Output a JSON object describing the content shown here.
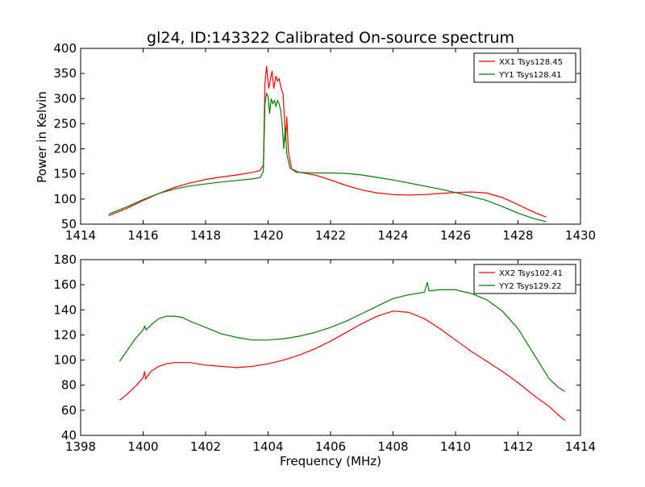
{
  "figure": {
    "title": "gl24, ID:143322 Calibrated On-source spectrum",
    "ylabel": "Power in Kelvin",
    "xlabel": "Frequency (MHz)"
  },
  "chart_data": [
    {
      "type": "line",
      "xlim": [
        1414,
        1430
      ],
      "ylim": [
        50,
        400
      ],
      "xticks": [
        1414,
        1416,
        1418,
        1420,
        1422,
        1424,
        1426,
        1428,
        1430
      ],
      "yticks": [
        50,
        100,
        150,
        200,
        250,
        300,
        350,
        400
      ],
      "legend_position": "top-right",
      "series": [
        {
          "name": "XX1 Tsys128.45",
          "color": "#ff0000",
          "points": [
            [
              1414.9,
              67
            ],
            [
              1415.5,
              82
            ],
            [
              1416,
              97
            ],
            [
              1416.5,
              111
            ],
            [
              1417,
              123
            ],
            [
              1417.5,
              132
            ],
            [
              1418,
              139
            ],
            [
              1418.5,
              144
            ],
            [
              1419,
              148
            ],
            [
              1419.5,
              153
            ],
            [
              1419.75,
              157
            ],
            [
              1419.85,
              168
            ],
            [
              1419.9,
              330
            ],
            [
              1419.95,
              365
            ],
            [
              1420.02,
              320
            ],
            [
              1420.08,
              340
            ],
            [
              1420.13,
              355
            ],
            [
              1420.18,
              320
            ],
            [
              1420.25,
              345
            ],
            [
              1420.3,
              335
            ],
            [
              1420.35,
              340
            ],
            [
              1420.42,
              320
            ],
            [
              1420.48,
              310
            ],
            [
              1420.52,
              265
            ],
            [
              1420.56,
              215
            ],
            [
              1420.6,
              264
            ],
            [
              1420.65,
              195
            ],
            [
              1420.75,
              160
            ],
            [
              1421,
              153
            ],
            [
              1421.5,
              148
            ],
            [
              1422,
              138
            ],
            [
              1422.5,
              127
            ],
            [
              1423,
              118
            ],
            [
              1423.5,
              112
            ],
            [
              1424,
              109
            ],
            [
              1424.5,
              108
            ],
            [
              1425,
              109
            ],
            [
              1425.5,
              111
            ],
            [
              1426,
              113
            ],
            [
              1426.5,
              114
            ],
            [
              1427,
              112
            ],
            [
              1427.5,
              103
            ],
            [
              1428,
              89
            ],
            [
              1428.5,
              74
            ],
            [
              1428.9,
              64
            ]
          ]
        },
        {
          "name": "YY1 Tsys128.41",
          "color": "#008000",
          "points": [
            [
              1414.9,
              70
            ],
            [
              1415.5,
              85
            ],
            [
              1416,
              99
            ],
            [
              1416.5,
              111
            ],
            [
              1417,
              120
            ],
            [
              1417.5,
              126
            ],
            [
              1418,
              130
            ],
            [
              1418.5,
              134
            ],
            [
              1419,
              137
            ],
            [
              1419.5,
              140
            ],
            [
              1419.75,
              143
            ],
            [
              1419.85,
              155
            ],
            [
              1419.9,
              290
            ],
            [
              1419.95,
              310
            ],
            [
              1420,
              305
            ],
            [
              1420.05,
              270
            ],
            [
              1420.1,
              300
            ],
            [
              1420.15,
              290
            ],
            [
              1420.2,
              296
            ],
            [
              1420.25,
              285
            ],
            [
              1420.3,
              296
            ],
            [
              1420.35,
              290
            ],
            [
              1420.4,
              278
            ],
            [
              1420.45,
              250
            ],
            [
              1420.5,
              200
            ],
            [
              1420.55,
              242
            ],
            [
              1420.6,
              190
            ],
            [
              1420.7,
              162
            ],
            [
              1420.9,
              153
            ],
            [
              1421.5,
              152
            ],
            [
              1422,
              152
            ],
            [
              1422.5,
              151
            ],
            [
              1423,
              148
            ],
            [
              1423.5,
              143
            ],
            [
              1424,
              138
            ],
            [
              1424.5,
              132
            ],
            [
              1425,
              126
            ],
            [
              1425.5,
              120
            ],
            [
              1426,
              113
            ],
            [
              1426.5,
              105
            ],
            [
              1427,
              97
            ],
            [
              1427.5,
              85
            ],
            [
              1428,
              72
            ],
            [
              1428.5,
              61
            ],
            [
              1428.9,
              55
            ]
          ]
        }
      ]
    },
    {
      "type": "line",
      "xlim": [
        1398,
        1414
      ],
      "ylim": [
        40,
        180
      ],
      "xticks": [
        1398,
        1400,
        1402,
        1404,
        1406,
        1408,
        1410,
        1412,
        1414
      ],
      "yticks": [
        40,
        60,
        80,
        100,
        120,
        140,
        160,
        180
      ],
      "legend_position": "top-right",
      "series": [
        {
          "name": "XX2 Tsys102.41",
          "color": "#ff0000",
          "points": [
            [
              1399.25,
              68
            ],
            [
              1399.5,
              73
            ],
            [
              1399.75,
              79
            ],
            [
              1400,
              86
            ],
            [
              1400.05,
              91
            ],
            [
              1400.08,
              85
            ],
            [
              1400.25,
              91
            ],
            [
              1400.5,
              95
            ],
            [
              1400.75,
              97
            ],
            [
              1401,
              98
            ],
            [
              1401.5,
              98
            ],
            [
              1402,
              96
            ],
            [
              1402.5,
              95
            ],
            [
              1403,
              94
            ],
            [
              1403.5,
              95
            ],
            [
              1404,
              97
            ],
            [
              1404.5,
              100
            ],
            [
              1405,
              104
            ],
            [
              1405.5,
              109
            ],
            [
              1406,
              115
            ],
            [
              1406.5,
              122
            ],
            [
              1407,
              129
            ],
            [
              1407.5,
              135
            ],
            [
              1408,
              139
            ],
            [
              1408.5,
              138
            ],
            [
              1409,
              133
            ],
            [
              1409.5,
              125
            ],
            [
              1410,
              116
            ],
            [
              1410.5,
              107
            ],
            [
              1411,
              99
            ],
            [
              1411.5,
              91
            ],
            [
              1412,
              82
            ],
            [
              1412.5,
              72
            ],
            [
              1413,
              63
            ],
            [
              1413.3,
              56
            ],
            [
              1413.5,
              52
            ]
          ]
        },
        {
          "name": "YY2 Tsys129.22",
          "color": "#008000",
          "points": [
            [
              1399.25,
              99
            ],
            [
              1399.5,
              108
            ],
            [
              1399.75,
              117
            ],
            [
              1400,
              124
            ],
            [
              1400.05,
              127
            ],
            [
              1400.1,
              124
            ],
            [
              1400.25,
              128
            ],
            [
              1400.5,
              133
            ],
            [
              1400.75,
              135
            ],
            [
              1401,
              135
            ],
            [
              1401.25,
              134
            ],
            [
              1401.5,
              131
            ],
            [
              1402,
              126
            ],
            [
              1402.5,
              121
            ],
            [
              1403,
              118
            ],
            [
              1403.5,
              116
            ],
            [
              1404,
              116
            ],
            [
              1404.5,
              117
            ],
            [
              1405,
              119
            ],
            [
              1405.5,
              122
            ],
            [
              1406,
              126
            ],
            [
              1406.5,
              131
            ],
            [
              1407,
              137
            ],
            [
              1407.5,
              143
            ],
            [
              1408,
              149
            ],
            [
              1408.5,
              152
            ],
            [
              1409,
              154
            ],
            [
              1409.1,
              162
            ],
            [
              1409.15,
              155
            ],
            [
              1409.5,
              156
            ],
            [
              1410,
              156
            ],
            [
              1410.5,
              153
            ],
            [
              1411,
              148
            ],
            [
              1411.5,
              139
            ],
            [
              1412,
              125
            ],
            [
              1412.5,
              105
            ],
            [
              1413,
              85
            ],
            [
              1413.3,
              78
            ],
            [
              1413.5,
              75
            ]
          ]
        }
      ]
    }
  ]
}
